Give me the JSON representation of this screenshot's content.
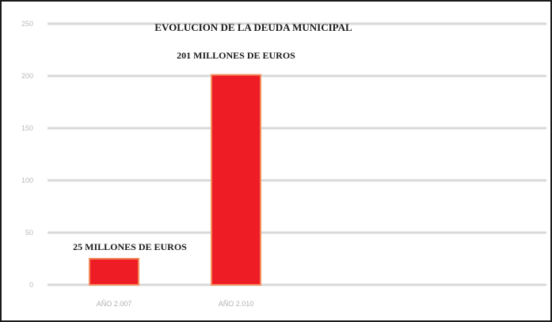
{
  "chart_data": {
    "type": "bar",
    "title": "EVOLUCION DE LA DEUDA MUNICIPAL",
    "categories": [
      "AÑO 2.007",
      "AÑO 2.010"
    ],
    "values": [
      25,
      201
    ],
    "data_labels": [
      "25 MILLONES DE EUROS",
      "201 MILLONES DE EUROS"
    ],
    "ylim": [
      0,
      250
    ],
    "yticks": [
      0,
      50,
      100,
      150,
      200,
      250
    ],
    "xlabel": "",
    "ylabel": "",
    "grid": true,
    "bar_color": "#ee1c25",
    "bar_edge_color": "#f28a5c"
  }
}
